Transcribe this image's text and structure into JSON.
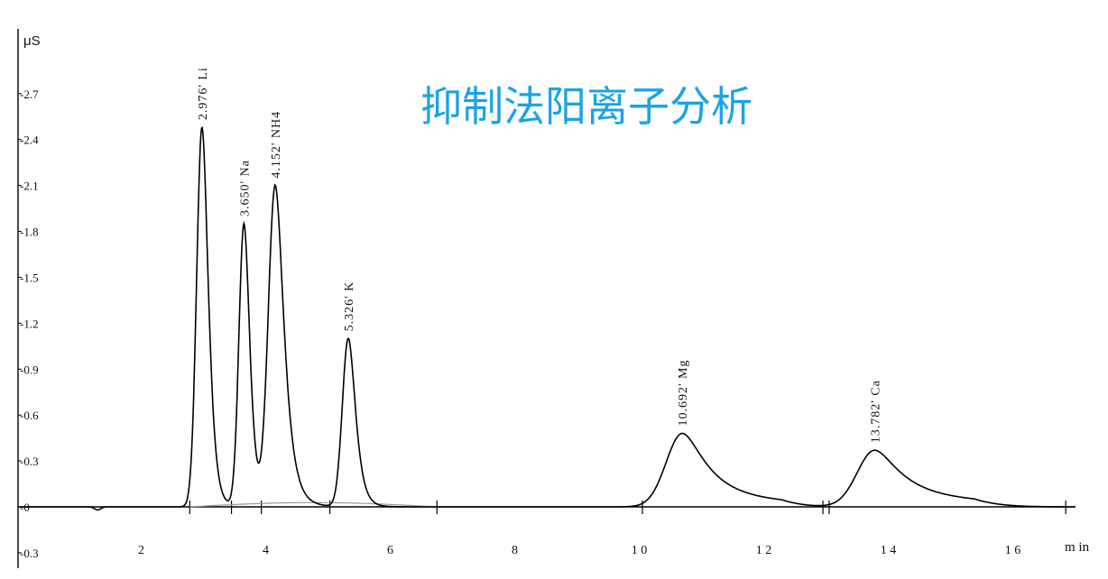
{
  "colors": {
    "accent": "#1aa3e8",
    "trace": "#000000",
    "baseline": "#9a9a9a"
  },
  "chart_data": {
    "type": "line",
    "title": "抑制法阳离子分析",
    "ylabel": "μS",
    "xlabel": "m in",
    "ylim": [
      -0.3,
      3.0
    ],
    "xlim": [
      0,
      17.5
    ],
    "yticks": [
      {
        "value": 2.7,
        "label": "2.7"
      },
      {
        "value": 2.4,
        "label": "2.4"
      },
      {
        "value": 2.1,
        "label": "2.1"
      },
      {
        "value": 1.8,
        "label": "1.8"
      },
      {
        "value": 1.5,
        "label": "1.5"
      },
      {
        "value": 1.2,
        "label": "1.2"
      },
      {
        "value": 0.9,
        "label": "0.9"
      },
      {
        "value": 0.6,
        "label": "0.6"
      },
      {
        "value": 0.3,
        "label": "0.3"
      },
      {
        "value": 0.0,
        "label": "0"
      },
      {
        "value": -0.3,
        "label": "-0.3"
      }
    ],
    "xticks": [
      {
        "value": 2,
        "label": "2"
      },
      {
        "value": 4,
        "label": "4"
      },
      {
        "value": 6,
        "label": "6"
      },
      {
        "value": 8,
        "label": "8"
      },
      {
        "value": 10,
        "label": "1 0"
      },
      {
        "value": 12,
        "label": "1 2"
      },
      {
        "value": 14,
        "label": "1 4"
      },
      {
        "value": 16,
        "label": "1 6"
      }
    ],
    "peaks": [
      {
        "rt": 2.976,
        "height": 2.48,
        "label": "2.976' Li"
      },
      {
        "rt": 3.65,
        "height": 1.85,
        "label": "3.650' Na"
      },
      {
        "rt": 4.152,
        "height": 2.1,
        "label": "4.152' NH4"
      },
      {
        "rt": 5.326,
        "height": 1.1,
        "label": "5.326' K"
      },
      {
        "rt": 10.692,
        "height": 0.48,
        "label": "10.692' Mg"
      },
      {
        "rt": 13.782,
        "height": 0.37,
        "label": "13.782' Ca"
      }
    ]
  }
}
